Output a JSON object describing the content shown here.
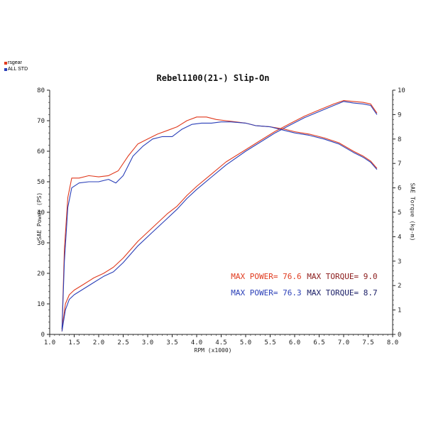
{
  "legend": [
    {
      "label": "rsgear",
      "color": "#e03a1e"
    },
    {
      "label": "ALL STD",
      "color": "#2a3fb8"
    }
  ],
  "chart_data": {
    "type": "line",
    "title": "Rebel1100(21-) Slip-On",
    "xlabel": "RPM (x1000)",
    "ylabel_left": "SAE Power (PS)",
    "ylabel_right": "SAE Torque (kg-m)",
    "xlim": [
      1.0,
      8.0
    ],
    "ylim_left": [
      0,
      80
    ],
    "ylim_right": [
      0,
      10
    ],
    "x_ticks": [
      "1.0",
      "1.5",
      "2.0",
      "2.5",
      "3.0",
      "3.5",
      "4.0",
      "4.5",
      "5.0",
      "5.5",
      "6.0",
      "6.5",
      "7.0",
      "7.5",
      "8.0"
    ],
    "y_left_ticks": [
      "0",
      "10",
      "20",
      "30",
      "40",
      "50",
      "60",
      "70",
      "80"
    ],
    "y_right_ticks": [
      "0",
      "1",
      "2",
      "3",
      "4",
      "5",
      "6",
      "7",
      "8",
      "9",
      "10"
    ],
    "grid": false,
    "series": [
      {
        "name": "rsgear",
        "kind": "power",
        "axis": "left",
        "color": "#e03a1e",
        "points": [
          [
            1.25,
            1
          ],
          [
            1.28,
            5
          ],
          [
            1.32,
            10
          ],
          [
            1.4,
            13
          ],
          [
            1.5,
            14.5
          ],
          [
            1.7,
            16.5
          ],
          [
            1.9,
            18.5
          ],
          [
            2.1,
            20
          ],
          [
            2.3,
            22
          ],
          [
            2.5,
            25
          ],
          [
            2.8,
            30.5
          ],
          [
            3.1,
            35
          ],
          [
            3.4,
            39.5
          ],
          [
            3.6,
            42
          ],
          [
            3.8,
            45.5
          ],
          [
            4.0,
            48.5
          ],
          [
            4.3,
            52.5
          ],
          [
            4.6,
            56.5
          ],
          [
            5.0,
            60.5
          ],
          [
            5.3,
            63.5
          ],
          [
            5.6,
            66.5
          ],
          [
            5.9,
            69
          ],
          [
            6.2,
            71.5
          ],
          [
            6.5,
            73.5
          ],
          [
            6.8,
            75.5
          ],
          [
            7.0,
            76.6
          ],
          [
            7.2,
            76.3
          ],
          [
            7.4,
            76
          ],
          [
            7.55,
            75.5
          ],
          [
            7.68,
            72.5
          ]
        ]
      },
      {
        "name": "ALL STD",
        "kind": "power",
        "axis": "left",
        "color": "#2a3fb8",
        "points": [
          [
            1.25,
            1
          ],
          [
            1.28,
            4
          ],
          [
            1.32,
            8
          ],
          [
            1.4,
            11.5
          ],
          [
            1.5,
            13
          ],
          [
            1.7,
            15
          ],
          [
            1.9,
            17
          ],
          [
            2.1,
            19
          ],
          [
            2.3,
            20.5
          ],
          [
            2.5,
            23.5
          ],
          [
            2.8,
            29
          ],
          [
            3.1,
            33.5
          ],
          [
            3.4,
            38
          ],
          [
            3.6,
            41
          ],
          [
            3.8,
            44.5
          ],
          [
            4.0,
            47.5
          ],
          [
            4.3,
            51.5
          ],
          [
            4.6,
            55.5
          ],
          [
            5.0,
            60
          ],
          [
            5.3,
            63
          ],
          [
            5.6,
            66
          ],
          [
            5.9,
            68.5
          ],
          [
            6.2,
            71
          ],
          [
            6.5,
            73
          ],
          [
            6.8,
            75
          ],
          [
            7.0,
            76.3
          ],
          [
            7.2,
            75.8
          ],
          [
            7.4,
            75.5
          ],
          [
            7.55,
            75
          ],
          [
            7.68,
            72
          ]
        ]
      },
      {
        "name": "rsgear",
        "kind": "torque",
        "axis": "right",
        "color": "#e03a1e",
        "points": [
          [
            1.25,
            0.2
          ],
          [
            1.3,
            3.5
          ],
          [
            1.37,
            5.6
          ],
          [
            1.45,
            6.4
          ],
          [
            1.6,
            6.4
          ],
          [
            1.8,
            6.5
          ],
          [
            2.0,
            6.45
          ],
          [
            2.2,
            6.5
          ],
          [
            2.4,
            6.7
          ],
          [
            2.6,
            7.3
          ],
          [
            2.8,
            7.8
          ],
          [
            3.0,
            8.0
          ],
          [
            3.2,
            8.2
          ],
          [
            3.4,
            8.35
          ],
          [
            3.6,
            8.5
          ],
          [
            3.8,
            8.75
          ],
          [
            4.0,
            8.9
          ],
          [
            4.2,
            8.9
          ],
          [
            4.4,
            8.8
          ],
          [
            4.6,
            8.75
          ],
          [
            4.8,
            8.7
          ],
          [
            5.0,
            8.65
          ],
          [
            5.2,
            8.55
          ],
          [
            5.5,
            8.5
          ],
          [
            5.8,
            8.4
          ],
          [
            6.0,
            8.3
          ],
          [
            6.3,
            8.2
          ],
          [
            6.6,
            8.05
          ],
          [
            6.9,
            7.85
          ],
          [
            7.2,
            7.5
          ],
          [
            7.4,
            7.3
          ],
          [
            7.55,
            7.1
          ],
          [
            7.68,
            6.8
          ]
        ]
      },
      {
        "name": "ALL STD",
        "kind": "torque",
        "axis": "right",
        "color": "#2a3fb8",
        "points": [
          [
            1.25,
            0.2
          ],
          [
            1.3,
            3.0
          ],
          [
            1.37,
            5.2
          ],
          [
            1.45,
            6.0
          ],
          [
            1.6,
            6.2
          ],
          [
            1.8,
            6.25
          ],
          [
            2.0,
            6.25
          ],
          [
            2.2,
            6.35
          ],
          [
            2.35,
            6.2
          ],
          [
            2.5,
            6.5
          ],
          [
            2.7,
            7.3
          ],
          [
            2.9,
            7.7
          ],
          [
            3.1,
            8.0
          ],
          [
            3.3,
            8.1
          ],
          [
            3.5,
            8.1
          ],
          [
            3.7,
            8.4
          ],
          [
            3.9,
            8.6
          ],
          [
            4.1,
            8.65
          ],
          [
            4.3,
            8.65
          ],
          [
            4.5,
            8.7
          ],
          [
            4.7,
            8.7
          ],
          [
            5.0,
            8.65
          ],
          [
            5.2,
            8.55
          ],
          [
            5.5,
            8.5
          ],
          [
            5.8,
            8.35
          ],
          [
            6.0,
            8.25
          ],
          [
            6.3,
            8.15
          ],
          [
            6.6,
            8.0
          ],
          [
            6.9,
            7.8
          ],
          [
            7.2,
            7.45
          ],
          [
            7.4,
            7.25
          ],
          [
            7.55,
            7.05
          ],
          [
            7.68,
            6.75
          ]
        ]
      }
    ]
  },
  "annotations": [
    {
      "label": "MAX POWER=",
      "value": "76.6",
      "color": "#e03a1e"
    },
    {
      "label": "MAX TORQUE=",
      "value": "9.0",
      "color": "#8a1a1a"
    },
    {
      "label": "MAX POWER=",
      "value": "76.3",
      "color": "#2a3fb8"
    },
    {
      "label": "MAX TORQUE=",
      "value": "8.7",
      "color": "#1c2068"
    }
  ]
}
